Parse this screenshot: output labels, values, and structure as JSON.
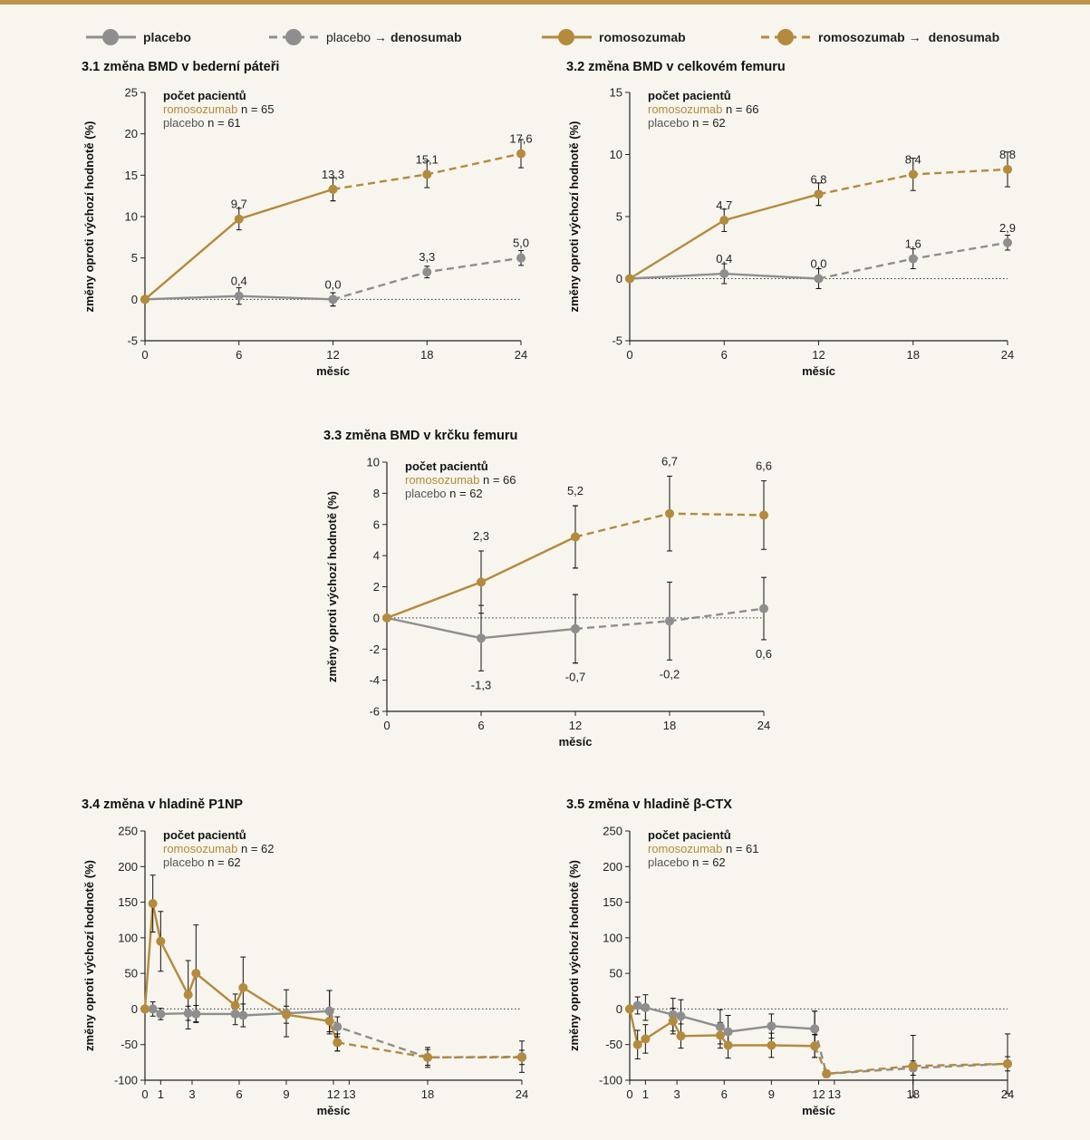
{
  "legend": {
    "placebo": "placebo",
    "placebo_deno_a": "placebo → ",
    "placebo_deno_b": "denosumab",
    "romo": "romosozumab",
    "romo_deno_a": "romosozumab → ",
    "romo_deno_b": "denosumab"
  },
  "colors": {
    "romosozumab": "#b48a3c",
    "placebo": "#8e8e8e"
  },
  "common": {
    "ylabel": "změny oproti výchozí hodnotě (%)",
    "xlabel": "měsíc",
    "n_header": "počet pacientů",
    "romo_name": "romosozumab",
    "placebo_name": "placebo"
  },
  "chart_data": [
    {
      "id": "p1",
      "type": "line",
      "title": "3.1 změna BMD v bederní páteři",
      "xlabel": "měsíc",
      "ylabel": "změny oproti výchozí hodnotě (%)",
      "xticks": [
        0,
        6,
        12,
        18,
        24
      ],
      "ylim": [
        -5,
        25
      ],
      "yticks": [
        -5,
        0,
        5,
        10,
        15,
        20,
        25
      ],
      "romo_n": "n = 65",
      "placebo_n": "n = 61",
      "series": [
        {
          "name": "romosozumab",
          "x": [
            0,
            6,
            12
          ],
          "y": [
            0,
            9.7,
            13.3
          ],
          "err": [
            0,
            1.3,
            1.4
          ]
        },
        {
          "name": "romosozumab → denosumab",
          "x": [
            12,
            18,
            24
          ],
          "y": [
            13.3,
            15.1,
            17.6
          ],
          "err": [
            1.4,
            1.6,
            1.7
          ]
        },
        {
          "name": "placebo",
          "x": [
            0,
            6,
            12
          ],
          "y": [
            0,
            0.4,
            0.0
          ],
          "err": [
            0,
            1.0,
            0.8
          ]
        },
        {
          "name": "placebo → denosumab",
          "x": [
            12,
            18,
            24
          ],
          "y": [
            0.0,
            3.3,
            5.0
          ],
          "err": [
            0.8,
            0.7,
            0.9
          ]
        }
      ],
      "labels": [
        {
          "x": 6,
          "y": 9.7,
          "text": "9,7",
          "pos": "above"
        },
        {
          "x": 12,
          "y": 13.3,
          "text": "13,3",
          "pos": "above"
        },
        {
          "x": 18,
          "y": 15.1,
          "text": "15,1",
          "pos": "above"
        },
        {
          "x": 24,
          "y": 17.6,
          "text": "17,6",
          "pos": "above"
        },
        {
          "x": 6,
          "y": 0.4,
          "text": "0,4",
          "pos": "above"
        },
        {
          "x": 12,
          "y": 0.0,
          "text": "0,0",
          "pos": "above"
        },
        {
          "x": 18,
          "y": 3.3,
          "text": "3,3",
          "pos": "above"
        },
        {
          "x": 24,
          "y": 5.0,
          "text": "5,0",
          "pos": "above"
        }
      ]
    },
    {
      "id": "p2",
      "type": "line",
      "title": "3.2 změna BMD v celkovém femuru",
      "xlabel": "měsíc",
      "ylabel": "změny oproti výchozí hodnotě (%)",
      "xticks": [
        0,
        6,
        12,
        18,
        24
      ],
      "ylim": [
        -5,
        15
      ],
      "yticks": [
        -5,
        0,
        5,
        10,
        15
      ],
      "romo_n": "n = 66",
      "placebo_n": "n = 62",
      "series": [
        {
          "name": "romosozumab",
          "x": [
            0,
            6,
            12
          ],
          "y": [
            0,
            4.7,
            6.8
          ],
          "err": [
            0,
            0.9,
            0.9
          ]
        },
        {
          "name": "romosozumab → denosumab",
          "x": [
            12,
            18,
            24
          ],
          "y": [
            6.8,
            8.4,
            8.8
          ],
          "err": [
            0.9,
            1.3,
            1.4
          ]
        },
        {
          "name": "placebo",
          "x": [
            0,
            6,
            12
          ],
          "y": [
            0,
            0.4,
            0.0
          ],
          "err": [
            0,
            0.8,
            0.8
          ]
        },
        {
          "name": "placebo → denosumab",
          "x": [
            12,
            18,
            24
          ],
          "y": [
            0.0,
            1.6,
            2.9
          ],
          "err": [
            0.8,
            0.8,
            0.6
          ]
        }
      ],
      "labels": [
        {
          "x": 6,
          "y": 4.7,
          "text": "4,7",
          "pos": "above"
        },
        {
          "x": 12,
          "y": 6.8,
          "text": "6,8",
          "pos": "above"
        },
        {
          "x": 18,
          "y": 8.4,
          "text": "8,4",
          "pos": "above"
        },
        {
          "x": 24,
          "y": 8.8,
          "text": "8,8",
          "pos": "above"
        },
        {
          "x": 6,
          "y": 0.4,
          "text": "0,4",
          "pos": "above"
        },
        {
          "x": 12,
          "y": 0.0,
          "text": "0,0",
          "pos": "above"
        },
        {
          "x": 18,
          "y": 1.6,
          "text": "1,6",
          "pos": "above"
        },
        {
          "x": 24,
          "y": 2.9,
          "text": "2,9",
          "pos": "above"
        }
      ]
    },
    {
      "id": "p3",
      "type": "line",
      "title": "3.3 změna BMD v krčku femuru",
      "xlabel": "měsíc",
      "ylabel": "změny oproti výchozí hodnotě (%)",
      "xticks": [
        0,
        6,
        12,
        18,
        24
      ],
      "ylim": [
        -6,
        10
      ],
      "yticks": [
        -6,
        -4,
        -2,
        0,
        2,
        4,
        6,
        8,
        10
      ],
      "romo_n": "n = 66",
      "placebo_n": "n = 62",
      "series": [
        {
          "name": "romosozumab",
          "x": [
            0,
            6,
            12
          ],
          "y": [
            0,
            2.3,
            5.2
          ],
          "err": [
            0,
            2.0,
            2.0
          ]
        },
        {
          "name": "romosozumab → denosumab",
          "x": [
            12,
            18,
            24
          ],
          "y": [
            5.2,
            6.7,
            6.6
          ],
          "err": [
            2.0,
            2.4,
            2.2
          ]
        },
        {
          "name": "placebo",
          "x": [
            0,
            6,
            12
          ],
          "y": [
            0,
            -1.3,
            -0.7
          ],
          "err": [
            0,
            2.1,
            2.2
          ]
        },
        {
          "name": "placebo → denosumab",
          "x": [
            12,
            18,
            24
          ],
          "y": [
            -0.7,
            -0.2,
            0.6
          ],
          "err": [
            2.2,
            2.5,
            2.0
          ]
        }
      ],
      "labels": [
        {
          "x": 6,
          "y": 4.3,
          "text": "2,3",
          "pos": "above"
        },
        {
          "x": 12,
          "y": 7.2,
          "text": "5,2",
          "pos": "above"
        },
        {
          "x": 18,
          "y": 9.1,
          "text": "6,7",
          "pos": "above"
        },
        {
          "x": 24,
          "y": 8.8,
          "text": "6,6",
          "pos": "above"
        },
        {
          "x": 6,
          "y": -3.4,
          "text": "-1,3",
          "pos": "below"
        },
        {
          "x": 12,
          "y": -2.9,
          "text": "-0,7",
          "pos": "below"
        },
        {
          "x": 18,
          "y": -2.7,
          "text": "-0,2",
          "pos": "below"
        },
        {
          "x": 24,
          "y": -1.4,
          "text": "0,6",
          "pos": "below"
        }
      ]
    },
    {
      "id": "p4",
      "type": "line",
      "title": "3.4 změna v hladině P1NP",
      "xlabel": "měsíc",
      "ylabel": "změny oproti výchozí hodnotě (%)",
      "xticks": [
        0,
        1,
        3,
        6,
        9,
        12,
        13,
        18,
        24
      ],
      "xticklabels": [
        "0",
        "1",
        "3",
        "6",
        "9",
        "12",
        "13",
        "18",
        "24"
      ],
      "ylim": [
        -100,
        250
      ],
      "yticks": [
        -100,
        -50,
        0,
        50,
        100,
        150,
        200,
        250
      ],
      "romo_n": "n = 62",
      "placebo_n": "n = 62",
      "series": [
        {
          "name": "romosozumab",
          "x": [
            0,
            0.5,
            1,
            2.75,
            3.25,
            5.75,
            6.25,
            9,
            11.75,
            12.25
          ],
          "y": [
            0,
            148,
            95,
            20,
            50,
            5,
            30,
            -8,
            -17,
            -47
          ],
          "err": [
            0,
            40,
            42,
            48,
            68,
            16,
            43,
            12,
            18,
            12
          ]
        },
        {
          "name": "romosozumab → denosumab",
          "x": [
            12.25,
            18,
            24
          ],
          "y": [
            -47,
            -68,
            -68
          ],
          "err": [
            12,
            11,
            10
          ]
        },
        {
          "name": "placebo",
          "x": [
            0,
            0.5,
            1,
            2.75,
            3.25,
            5.75,
            6.25,
            9,
            11.75
          ],
          "y": [
            0,
            0,
            -7,
            -6,
            -7,
            -7,
            -9,
            -6,
            -3
          ],
          "err": [
            0,
            10,
            8,
            10,
            12,
            15,
            16,
            33,
            29
          ]
        },
        {
          "name": "placebo → denosumab",
          "x": [
            11.75,
            12.25,
            18,
            24
          ],
          "y": [
            -3,
            -25,
            -68,
            -67
          ],
          "err": [
            29,
            14,
            14,
            22
          ]
        }
      ]
    },
    {
      "id": "p5",
      "type": "line",
      "title": "3.5 změna v hladině β-CTX",
      "xlabel": "měsíc",
      "ylabel": "změny oproti výchozí hodnotě (%)",
      "xticks": [
        0,
        1,
        3,
        6,
        9,
        12,
        13,
        18,
        24
      ],
      "xticklabels": [
        "0",
        "1",
        "3",
        "6",
        "9",
        "12",
        "13",
        "18",
        "24"
      ],
      "ylim": [
        -100,
        250
      ],
      "yticks": [
        -100,
        -50,
        0,
        50,
        100,
        150,
        200,
        250
      ],
      "romo_n": "n = 61",
      "placebo_n": "n = 62",
      "series": [
        {
          "name": "romosozumab",
          "x": [
            0,
            0.5,
            1,
            2.75,
            3.25,
            5.75,
            6.25,
            9,
            11.75
          ],
          "y": [
            0,
            -50,
            -42,
            -17,
            -38,
            -37,
            -51,
            -51,
            -52
          ],
          "err": [
            0,
            20,
            20,
            18,
            17,
            18,
            18,
            17,
            16
          ]
        },
        {
          "name": "romosozumab → denosumab",
          "x": [
            11.75,
            12.5,
            18,
            24
          ],
          "y": [
            -52,
            -91,
            -80,
            -77
          ],
          "err": [
            16,
            5,
            43,
            42
          ]
        },
        {
          "name": "placebo",
          "x": [
            0,
            0.5,
            1,
            2.75,
            3.25,
            5.75,
            6.25,
            9,
            11.75
          ],
          "y": [
            0,
            5,
            2,
            -8,
            -10,
            -25,
            -32,
            -24,
            -28
          ],
          "err": [
            0,
            12,
            18,
            23,
            23,
            24,
            23,
            17,
            25
          ]
        },
        {
          "name": "placebo → denosumab",
          "x": [
            11.75,
            12.5,
            18,
            24
          ],
          "y": [
            -28,
            -91,
            -83,
            -77
          ],
          "err": [
            25,
            5,
            10,
            10
          ]
        }
      ]
    }
  ]
}
